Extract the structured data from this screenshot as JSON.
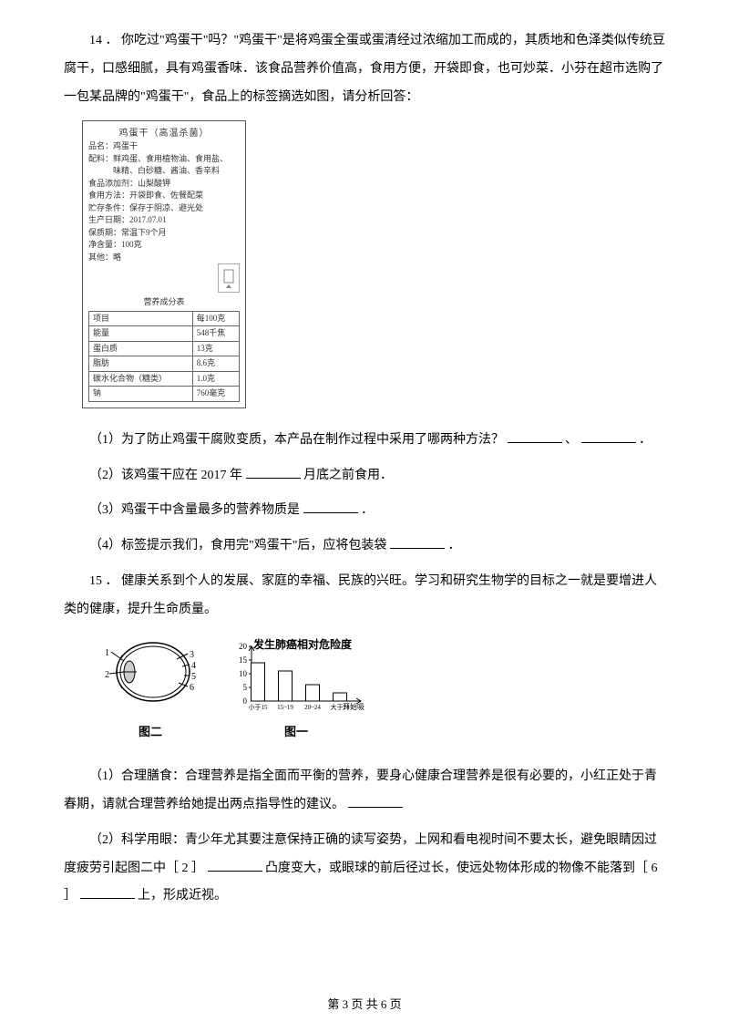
{
  "q14": {
    "number": "14 ．",
    "text": "你吃过\"鸡蛋干\"吗？\"鸡蛋干\"是将鸡蛋全蛋或蛋清经过浓缩加工而成的，其质地和色泽类似传统豆腐干，口感细腻，具有鸡蛋香味．该食品营养价值高，食用方便，开袋即食，也可炒菜．小芬在超市选购了一包某品牌的\"鸡蛋干\"，食品上的标签摘选如图，请分析回答：",
    "label": {
      "title": "鸡蛋干（高温杀菌）",
      "rows": [
        "品名：鸡蛋干",
        "配料：鲜鸡蛋、食用植物油、食用盐、",
        "　　　味精、白砂糖、酱油、香辛料",
        "食品添加剂：山梨酸钾",
        "食用方法：开袋即食、佐餐配菜",
        "贮存条件：保存于阴凉、避光处",
        "生产日期：2017.07.01",
        "保质期：常温下9个月",
        "净含量：100克",
        "其他：略"
      ],
      "nutri_title": "营养成分表",
      "nutri_rows": [
        [
          "项目",
          "每100克"
        ],
        [
          "能量",
          "548千焦"
        ],
        [
          "蛋白质",
          "13克"
        ],
        [
          "脂肪",
          "8.6克"
        ],
        [
          "碳水化合物（糖类）",
          "1.0克"
        ],
        [
          "钠",
          "760毫克"
        ]
      ]
    },
    "sub1": "（1）为了防止鸡蛋干腐败变质，本产品在制作过程中采用了哪两种方法？",
    "sub1_sep": "、",
    "sub1_end": "．",
    "sub2_a": "（2）该鸡蛋干应在 2017 年",
    "sub2_b": "月底之前食用．",
    "sub3_a": "（3）鸡蛋干中含量最多的营养物质是",
    "sub3_b": "．",
    "sub4_a": "（4）标签提示我们，食用完\"鸡蛋干\"后，应将包装袋",
    "sub4_b": "．"
  },
  "q15": {
    "number": "15 ．",
    "text": "健康关系到个人的发展、家庭的幸福、民族的兴旺。学习和研究生物学的目标之一就是要增进人类的健康，提升生命质量。",
    "chart": {
      "title": "发生肺癌相对危险度",
      "y_values": [
        14,
        11,
        6,
        3
      ],
      "ylim": 20,
      "ytick_step": 5,
      "x_labels": [
        "小于15",
        "15~19",
        "20~24",
        "大于24"
      ],
      "x_axis": "开始吸烟年龄（岁）",
      "bar_color": "#ffffff",
      "border_color": "#000000"
    },
    "fig_label_eye": "图二",
    "fig_label_chart": "图一",
    "sub1": "（1）合理膳食：合理营养是指全面而平衡的营养，要身心健康合理营养是很有必要的，小红正处于青春期，请就合理营养给她提出两点指导性的建议。",
    "sub2_a": "（2）科学用眼：青少年尤其要注意保持正确的读写姿势，上网和看电视时间不要太长，避免眼睛因过度疲劳引起图二中［ 2 ］",
    "sub2_b": "凸度变大，或眼球的前后径过长，使远处物体形成的物像不能落到［ 6 ］",
    "sub2_c": "上，形成近视。"
  },
  "footer": "第 3 页 共 6 页"
}
